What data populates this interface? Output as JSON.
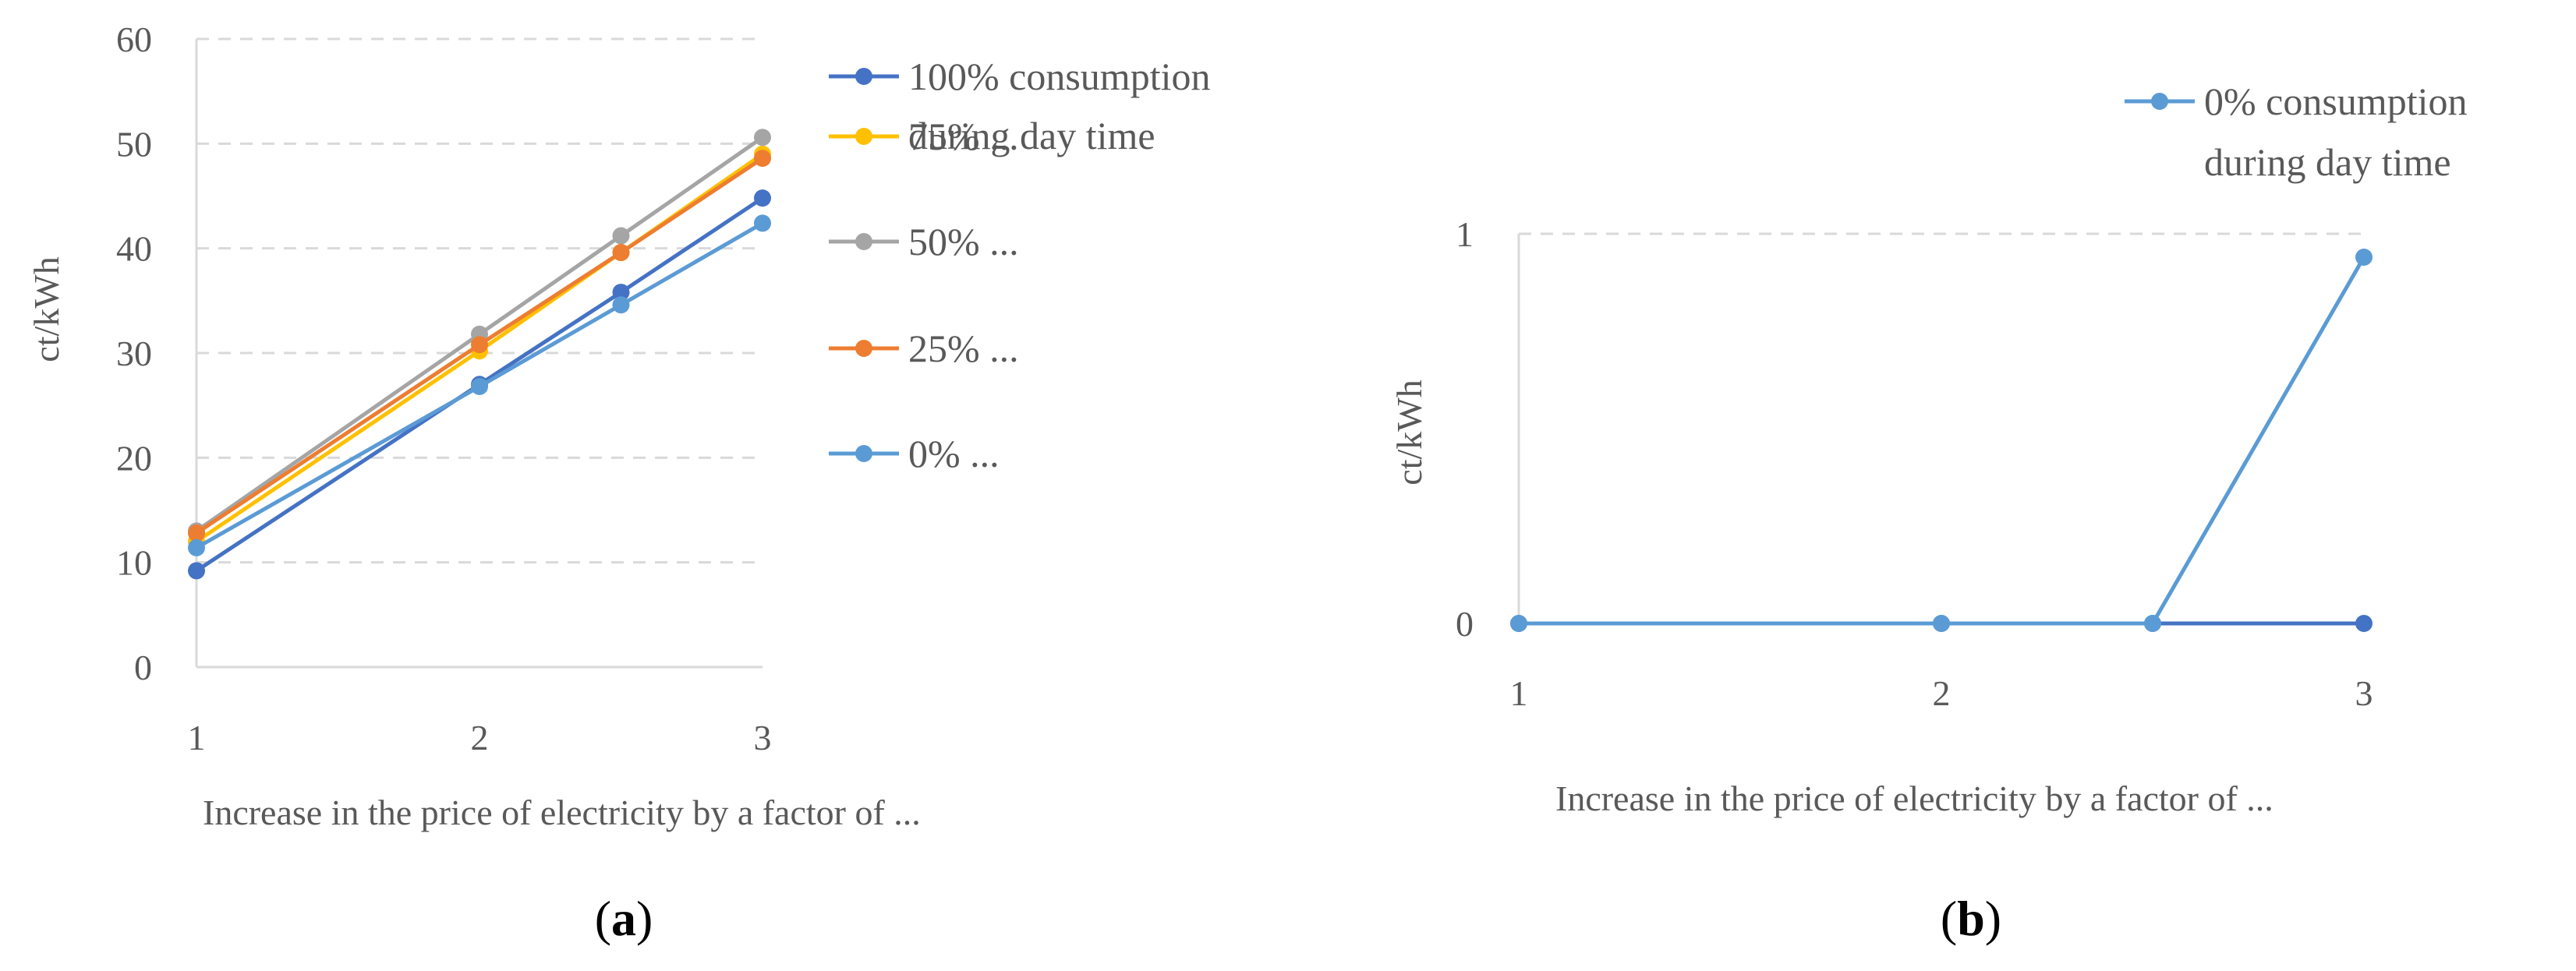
{
  "chart_data": [
    {
      "id": "a",
      "type": "line",
      "caption": {
        "open": "(",
        "letter": "a",
        "close": ")"
      },
      "xlabel": "Increase in the price of electricity by a factor of ...",
      "ylabel": "ct/kWh",
      "x": [
        1,
        2,
        2.5,
        3
      ],
      "xticks": [
        1,
        2,
        3
      ],
      "yticks": [
        0,
        10,
        20,
        30,
        40,
        50,
        60
      ],
      "xlim": [
        1,
        3
      ],
      "ylim": [
        0,
        60
      ],
      "grid": "horizontal-dashed",
      "legend_position": "right",
      "series": [
        {
          "name": "100% consumption during day time",
          "legend_lines": [
            "100% consumption",
            "during day time"
          ],
          "color": "#4472C4",
          "values": [
            9.2,
            27.0,
            35.8,
            44.8
          ]
        },
        {
          "name": "75% ...",
          "legend_lines": [
            "75% ..."
          ],
          "color": "#FFC000",
          "values": [
            12.0,
            30.2,
            39.6,
            49.0
          ]
        },
        {
          "name": "50% ...",
          "legend_lines": [
            "50% ..."
          ],
          "color": "#A5A5A5",
          "values": [
            13.0,
            31.8,
            41.2,
            50.6
          ]
        },
        {
          "name": "25% ...",
          "legend_lines": [
            "25% ..."
          ],
          "color": "#ED7D31",
          "values": [
            12.8,
            30.8,
            39.6,
            48.6
          ]
        },
        {
          "name": "0% ...",
          "legend_lines": [
            "0% ..."
          ],
          "color": "#5B9BD5",
          "values": [
            11.4,
            26.8,
            34.6,
            42.4
          ]
        }
      ]
    },
    {
      "id": "b",
      "type": "line",
      "caption": {
        "open": "(",
        "letter": "b",
        "close": ")"
      },
      "xlabel": "Increase in the price of electricity by a factor of ...",
      "ylabel": "ct/kWh",
      "x": [
        1,
        2,
        2.5,
        3
      ],
      "xticks": [
        1,
        2,
        3
      ],
      "yticks": [
        0,
        1
      ],
      "xlim": [
        1,
        3
      ],
      "ylim": [
        0,
        1
      ],
      "grid": "horizontal-dashed",
      "legend_position": "top-right",
      "series": [
        {
          "name": "100% consumption during day time",
          "legend_lines": [],
          "color": "#4472C4",
          "values": [
            0,
            0,
            0,
            0
          ]
        },
        {
          "name": "0% consumption during day time",
          "legend_lines": [
            "0% consumption",
            "during day time"
          ],
          "color": "#5B9BD5",
          "values": [
            0,
            0,
            0,
            0.94
          ]
        }
      ]
    }
  ]
}
